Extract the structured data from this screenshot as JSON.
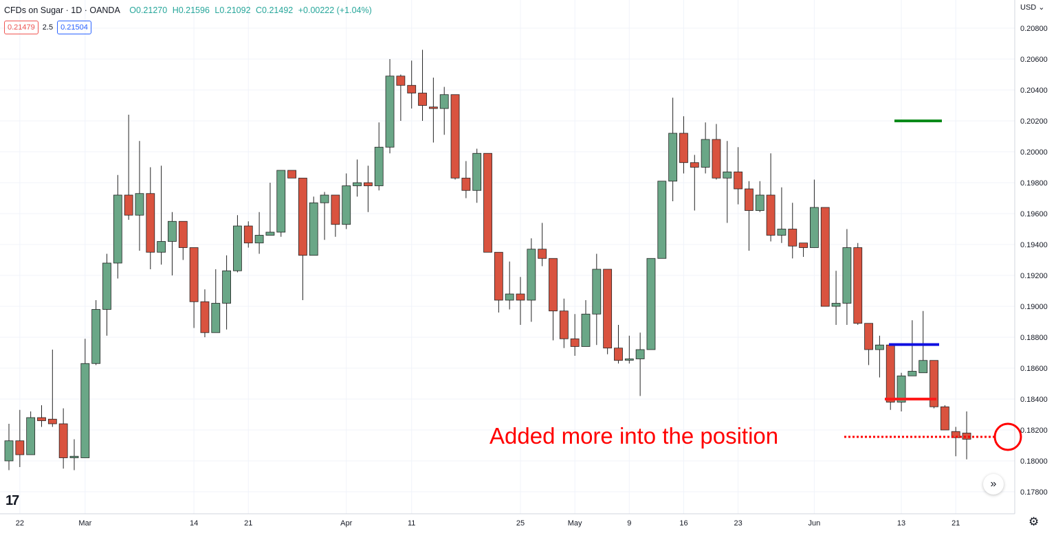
{
  "header": {
    "symbol": "CFDs on Sugar · 1D · OANDA",
    "open": "O0.21270",
    "high": "H0.21596",
    "low": "L0.21092",
    "close": "C0.21492",
    "change": "+0.00222 (+1.04%)"
  },
  "quotes": {
    "bid": "0.21479",
    "spread": "2.5",
    "ask": "0.21504"
  },
  "currency": "USD",
  "currency_arrow": "chevron-down-icon",
  "logo_text": "17",
  "icons": {
    "scroll": "double-chevron-right-icon",
    "settings": "gear-icon"
  },
  "colors": {
    "up": "#6aa787",
    "down": "#d9533f",
    "target": "#0a8a1a",
    "entry": "#1010e0",
    "stop": "#ff1a1a",
    "annotation": "#ff0000"
  },
  "chart_data": {
    "type": "candlestick",
    "y_axis": {
      "range": [
        0.177,
        0.2084
      ],
      "ticks": [
        "0.20800",
        "0.20600",
        "0.20400",
        "0.20200",
        "0.20000",
        "0.19800",
        "0.19600",
        "0.19400",
        "0.19200",
        "0.19000",
        "0.18800",
        "0.18600",
        "0.18400",
        "0.18200",
        "0.18000",
        "0.17800"
      ]
    },
    "x_labels": [
      "22",
      "Mar",
      "14",
      "21",
      "Apr",
      "11",
      "25",
      "May",
      "9",
      "16",
      "23",
      "Jun",
      "13",
      "21"
    ],
    "grid": true,
    "candles": [
      {
        "o": 0.18,
        "h": 0.1824,
        "l": 0.1794,
        "c": 0.1813
      },
      {
        "o": 0.1813,
        "h": 0.1833,
        "l": 0.1796,
        "c": 0.1804
      },
      {
        "o": 0.1804,
        "h": 0.1832,
        "l": 0.1804,
        "c": 0.1828
      },
      {
        "o": 0.1828,
        "h": 0.1836,
        "l": 0.1822,
        "c": 0.1826
      },
      {
        "o": 0.1827,
        "h": 0.1872,
        "l": 0.1822,
        "c": 0.1824
      },
      {
        "o": 0.1824,
        "h": 0.1834,
        "l": 0.1795,
        "c": 0.1802
      },
      {
        "o": 0.1802,
        "h": 0.1814,
        "l": 0.1794,
        "c": 0.1803
      },
      {
        "o": 0.1802,
        "h": 0.1879,
        "l": 0.1802,
        "c": 0.1863
      },
      {
        "o": 0.1863,
        "h": 0.1904,
        "l": 0.1862,
        "c": 0.1898
      },
      {
        "o": 0.1898,
        "h": 0.1934,
        "l": 0.1881,
        "c": 0.1928
      },
      {
        "o": 0.1928,
        "h": 0.1985,
        "l": 0.1918,
        "c": 0.1972
      },
      {
        "o": 0.1972,
        "h": 0.2024,
        "l": 0.1956,
        "c": 0.1959
      },
      {
        "o": 0.1959,
        "h": 0.2007,
        "l": 0.1936,
        "c": 0.1973
      },
      {
        "o": 0.1973,
        "h": 0.199,
        "l": 0.1924,
        "c": 0.1935
      },
      {
        "o": 0.1935,
        "h": 0.1991,
        "l": 0.1927,
        "c": 0.1942
      },
      {
        "o": 0.1942,
        "h": 0.1961,
        "l": 0.192,
        "c": 0.1955
      },
      {
        "o": 0.1955,
        "h": 0.1955,
        "l": 0.193,
        "c": 0.1938
      },
      {
        "o": 0.1938,
        "h": 0.1938,
        "l": 0.1886,
        "c": 0.1903
      },
      {
        "o": 0.1903,
        "h": 0.1911,
        "l": 0.188,
        "c": 0.1883
      },
      {
        "o": 0.1883,
        "h": 0.1924,
        "l": 0.1883,
        "c": 0.1902
      },
      {
        "o": 0.1902,
        "h": 0.1933,
        "l": 0.1885,
        "c": 0.1923
      },
      {
        "o": 0.1923,
        "h": 0.1959,
        "l": 0.1922,
        "c": 0.1952
      },
      {
        "o": 0.1952,
        "h": 0.1955,
        "l": 0.1938,
        "c": 0.1941
      },
      {
        "o": 0.1941,
        "h": 0.1961,
        "l": 0.1934,
        "c": 0.1946
      },
      {
        "o": 0.1946,
        "h": 0.198,
        "l": 0.1946,
        "c": 0.1948
      },
      {
        "o": 0.1948,
        "h": 0.1988,
        "l": 0.1945,
        "c": 0.1988
      },
      {
        "o": 0.1988,
        "h": 0.1988,
        "l": 0.1983,
        "c": 0.1983
      },
      {
        "o": 0.1983,
        "h": 0.1983,
        "l": 0.1904,
        "c": 0.1933
      },
      {
        "o": 0.1933,
        "h": 0.1971,
        "l": 0.1933,
        "c": 0.1967
      },
      {
        "o": 0.1967,
        "h": 0.1974,
        "l": 0.1943,
        "c": 0.1972
      },
      {
        "o": 0.1972,
        "h": 0.1972,
        "l": 0.1945,
        "c": 0.1953
      },
      {
        "o": 0.1953,
        "h": 0.1986,
        "l": 0.195,
        "c": 0.1978
      },
      {
        "o": 0.1978,
        "h": 0.1995,
        "l": 0.1971,
        "c": 0.198
      },
      {
        "o": 0.198,
        "h": 0.1991,
        "l": 0.1961,
        "c": 0.1978
      },
      {
        "o": 0.1978,
        "h": 0.2019,
        "l": 0.1975,
        "c": 0.2003
      },
      {
        "o": 0.2003,
        "h": 0.206,
        "l": 0.1999,
        "c": 0.2049
      },
      {
        "o": 0.2049,
        "h": 0.205,
        "l": 0.202,
        "c": 0.2043
      },
      {
        "o": 0.2043,
        "h": 0.2059,
        "l": 0.2028,
        "c": 0.2038
      },
      {
        "o": 0.2038,
        "h": 0.2066,
        "l": 0.202,
        "c": 0.203
      },
      {
        "o": 0.2029,
        "h": 0.2048,
        "l": 0.2006,
        "c": 0.2028
      },
      {
        "o": 0.2028,
        "h": 0.2042,
        "l": 0.2011,
        "c": 0.2037
      },
      {
        "o": 0.2037,
        "h": 0.2037,
        "l": 0.1982,
        "c": 0.1983
      },
      {
        "o": 0.1983,
        "h": 0.1994,
        "l": 0.197,
        "c": 0.1975
      },
      {
        "o": 0.1975,
        "h": 0.2002,
        "l": 0.1967,
        "c": 0.1999
      },
      {
        "o": 0.1999,
        "h": 0.1999,
        "l": 0.1935,
        "c": 0.1935
      },
      {
        "o": 0.1935,
        "h": 0.1935,
        "l": 0.1896,
        "c": 0.1904
      },
      {
        "o": 0.1904,
        "h": 0.1929,
        "l": 0.1898,
        "c": 0.1908
      },
      {
        "o": 0.1908,
        "h": 0.1919,
        "l": 0.1888,
        "c": 0.1904
      },
      {
        "o": 0.1904,
        "h": 0.1944,
        "l": 0.189,
        "c": 0.1937
      },
      {
        "o": 0.1937,
        "h": 0.1954,
        "l": 0.1926,
        "c": 0.1931
      },
      {
        "o": 0.1931,
        "h": 0.1931,
        "l": 0.1878,
        "c": 0.1897
      },
      {
        "o": 0.1897,
        "h": 0.1905,
        "l": 0.1873,
        "c": 0.1879
      },
      {
        "o": 0.1879,
        "h": 0.1895,
        "l": 0.1868,
        "c": 0.1874
      },
      {
        "o": 0.1874,
        "h": 0.1904,
        "l": 0.1874,
        "c": 0.1895
      },
      {
        "o": 0.1895,
        "h": 0.1934,
        "l": 0.1875,
        "c": 0.1924
      },
      {
        "o": 0.1924,
        "h": 0.1924,
        "l": 0.1869,
        "c": 0.1873
      },
      {
        "o": 0.1873,
        "h": 0.1888,
        "l": 0.1863,
        "c": 0.1865
      },
      {
        "o": 0.1866,
        "h": 0.1881,
        "l": 0.1863,
        "c": 0.1866
      },
      {
        "o": 0.1866,
        "h": 0.1883,
        "l": 0.1842,
        "c": 0.1872
      },
      {
        "o": 0.1872,
        "h": 0.1931,
        "l": 0.1872,
        "c": 0.1931
      },
      {
        "o": 0.1931,
        "h": 0.1981,
        "l": 0.1931,
        "c": 0.1981
      },
      {
        "o": 0.1981,
        "h": 0.2035,
        "l": 0.1968,
        "c": 0.2012
      },
      {
        "o": 0.2012,
        "h": 0.2023,
        "l": 0.1986,
        "c": 0.1993
      },
      {
        "o": 0.1993,
        "h": 0.1998,
        "l": 0.1962,
        "c": 0.199
      },
      {
        "o": 0.199,
        "h": 0.2019,
        "l": 0.1986,
        "c": 0.2008
      },
      {
        "o": 0.2008,
        "h": 0.2018,
        "l": 0.1982,
        "c": 0.1983
      },
      {
        "o": 0.1983,
        "h": 0.2007,
        "l": 0.1954,
        "c": 0.1987
      },
      {
        "o": 0.1987,
        "h": 0.2003,
        "l": 0.1966,
        "c": 0.1976
      },
      {
        "o": 0.1976,
        "h": 0.1981,
        "l": 0.1936,
        "c": 0.1962
      },
      {
        "o": 0.1962,
        "h": 0.1981,
        "l": 0.1961,
        "c": 0.1972
      },
      {
        "o": 0.1972,
        "h": 0.1999,
        "l": 0.1942,
        "c": 0.1946
      },
      {
        "o": 0.1946,
        "h": 0.1977,
        "l": 0.1941,
        "c": 0.195
      },
      {
        "o": 0.195,
        "h": 0.1967,
        "l": 0.1931,
        "c": 0.1939
      },
      {
        "o": 0.1941,
        "h": 0.1941,
        "l": 0.1932,
        "c": 0.1938
      },
      {
        "o": 0.1938,
        "h": 0.1982,
        "l": 0.1938,
        "c": 0.1964
      },
      {
        "o": 0.1964,
        "h": 0.1964,
        "l": 0.19,
        "c": 0.19
      },
      {
        "o": 0.19,
        "h": 0.1923,
        "l": 0.1888,
        "c": 0.1902
      },
      {
        "o": 0.1902,
        "h": 0.195,
        "l": 0.1888,
        "c": 0.1938
      },
      {
        "o": 0.1938,
        "h": 0.1941,
        "l": 0.1888,
        "c": 0.1889
      },
      {
        "o": 0.1889,
        "h": 0.1889,
        "l": 0.1862,
        "c": 0.1872
      },
      {
        "o": 0.1872,
        "h": 0.1881,
        "l": 0.1854,
        "c": 0.1875
      },
      {
        "o": 0.1875,
        "h": 0.1875,
        "l": 0.1833,
        "c": 0.1838
      },
      {
        "o": 0.1838,
        "h": 0.1857,
        "l": 0.1832,
        "c": 0.1855
      },
      {
        "o": 0.1855,
        "h": 0.1891,
        "l": 0.1855,
        "c": 0.1858
      },
      {
        "o": 0.1857,
        "h": 0.1897,
        "l": 0.1857,
        "c": 0.1865
      },
      {
        "o": 0.1865,
        "h": 0.1865,
        "l": 0.1834,
        "c": 0.1835
      },
      {
        "o": 0.1835,
        "h": 0.1836,
        "l": 0.182,
        "c": 0.182
      },
      {
        "o": 0.1819,
        "h": 0.1822,
        "l": 0.1803,
        "c": 0.1815
      },
      {
        "o": 0.1818,
        "h": 0.1832,
        "l": 0.1801,
        "c": 0.1814
      }
    ],
    "levels": [
      {
        "name": "target",
        "price": 0.202
      },
      {
        "name": "entry",
        "price": 0.18753
      },
      {
        "name": "stop",
        "price": 0.184
      }
    ],
    "annotation": "Added more into the position"
  }
}
